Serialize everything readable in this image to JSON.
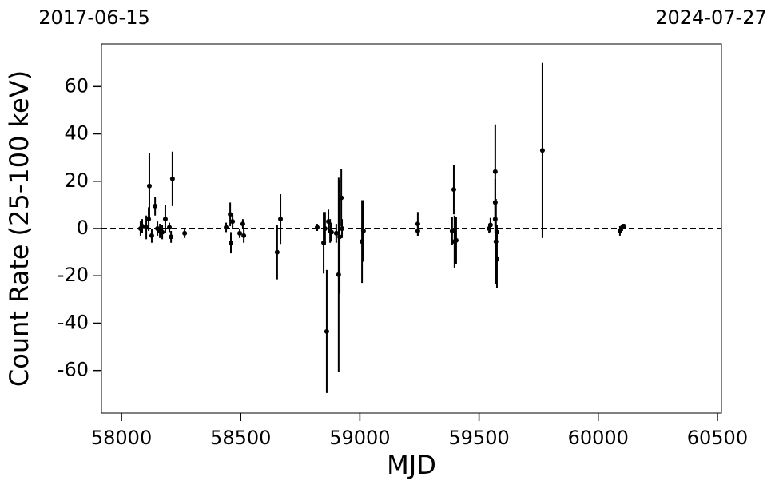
{
  "chart_data": {
    "type": "errorbar",
    "xlabel": "MJD",
    "ylabel": "Count Rate (25-100 keV)",
    "secondary_xlabels": [
      "2017-06-15",
      "2024-07-27"
    ],
    "color": "#000000",
    "hline": 0,
    "xlim": [
      57916,
      60517
    ],
    "xticks": [
      58000,
      58500,
      59000,
      59500,
      60000,
      60500
    ],
    "ylim": [
      -78,
      78
    ],
    "yticks": [
      -60,
      -40,
      -20,
      0,
      20,
      40,
      60
    ],
    "x": [
      58080,
      58087,
      58104,
      58117,
      58114,
      58127,
      58141,
      58151,
      58161,
      58171,
      58184,
      58201,
      58208,
      58214,
      58265,
      58439,
      58456,
      58459,
      58466,
      58496,
      58509,
      58513,
      58653,
      58667,
      58821,
      58848,
      58854,
      58861,
      58868,
      58875,
      58881,
      58901,
      58911,
      58915,
      58922,
      58925,
      59009,
      59015,
      59243,
      59243,
      59387,
      59394,
      59397,
      59404,
      59542,
      59548,
      59568,
      59568,
      59568,
      59571,
      59575,
      59575,
      59766,
      60091,
      60101,
      60108
    ],
    "values": [
      0,
      1,
      0.5,
      18,
      4,
      -3,
      9.5,
      0,
      -1,
      -1.5,
      4,
      0.5,
      -3.5,
      21,
      -2,
      0.5,
      6,
      -6,
      3,
      -2,
      2,
      -3,
      -10,
      4,
      0.5,
      -6,
      0,
      -43.5,
      3,
      -1,
      -1.5,
      -2,
      -19.5,
      -3.5,
      13,
      0,
      -5.5,
      -1,
      2,
      -1,
      -1,
      16.5,
      -5.5,
      -5,
      0,
      1.5,
      24,
      11,
      4,
      -5.5,
      -13,
      -1.5,
      33,
      -1,
      0.5,
      1
    ],
    "errors": [
      3,
      3,
      5,
      14,
      5,
      3,
      4,
      3,
      3,
      3,
      6,
      2,
      2.5,
      11.5,
      2,
      2,
      5,
      4.5,
      3,
      2,
      2,
      3,
      11.5,
      10.5,
      1.5,
      13,
      7,
      26,
      5,
      5,
      4,
      4,
      41,
      24,
      12,
      4,
      17.5,
      13,
      5,
      2,
      6,
      10.5,
      11,
      10,
      2,
      3,
      20,
      10,
      6,
      18,
      12,
      3,
      37,
      2,
      1.5,
      1
    ]
  }
}
